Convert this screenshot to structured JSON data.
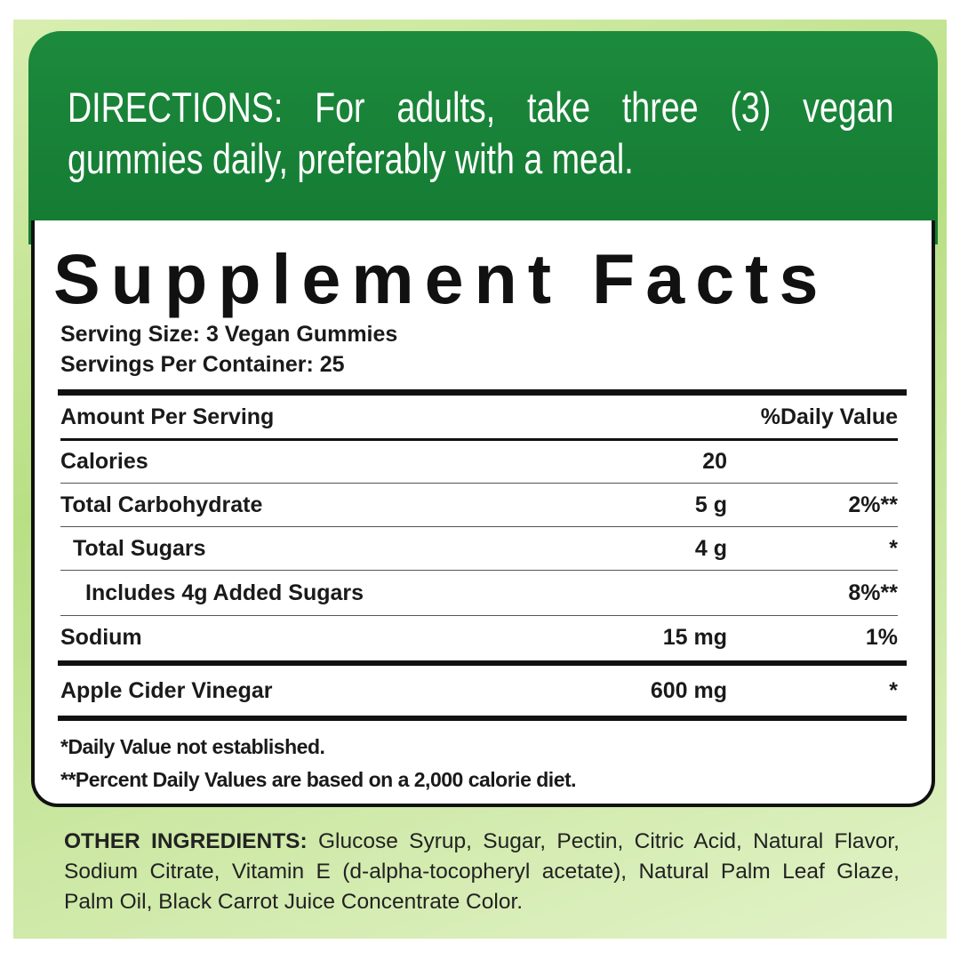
{
  "directions": "DIRECTIONS: For adults, take three (3) vegan gummies daily, preferably with a meal.",
  "facts": {
    "title": "Supplement Facts",
    "serving_size": "Serving Size: 3 Vegan Gummies",
    "servings_per_container": "Servings Per Container: 25",
    "header": [
      "Amount Per Serving",
      "%Daily Value"
    ],
    "rows": [
      {
        "name": "Calories",
        "amount": "20"
      },
      {
        "name": "Total Carbohydrate",
        "amount": "5 g",
        "daily_value": "2%**"
      },
      {
        "name": "Total Sugars",
        "amount": "4 g",
        "daily_value": "*"
      },
      {
        "name": "Includes 4g Added Sugars",
        "daily_value": "8%**"
      },
      {
        "name": "Sodium",
        "amount": "15 mg",
        "daily_value": "1%"
      },
      {
        "name": "Apple Cider Vinegar",
        "amount": "600 mg",
        "daily_value": "*"
      }
    ],
    "footnotes": [
      "*Daily Value not established.",
      "**Percent Daily Values are based on a 2,000 calorie diet."
    ]
  },
  "other_ingredients": {
    "label": "OTHER INGREDIENTS:",
    "text": "Glucose Syrup, Sugar, Pectin, Citric Acid, Natural Flavor, Sodium Citrate, Vitamin E (d-alpha-tocopheryl acetate), Natural Palm Leaf Glaze, Palm Oil, Black Carrot Juice Concentrate Color."
  }
}
